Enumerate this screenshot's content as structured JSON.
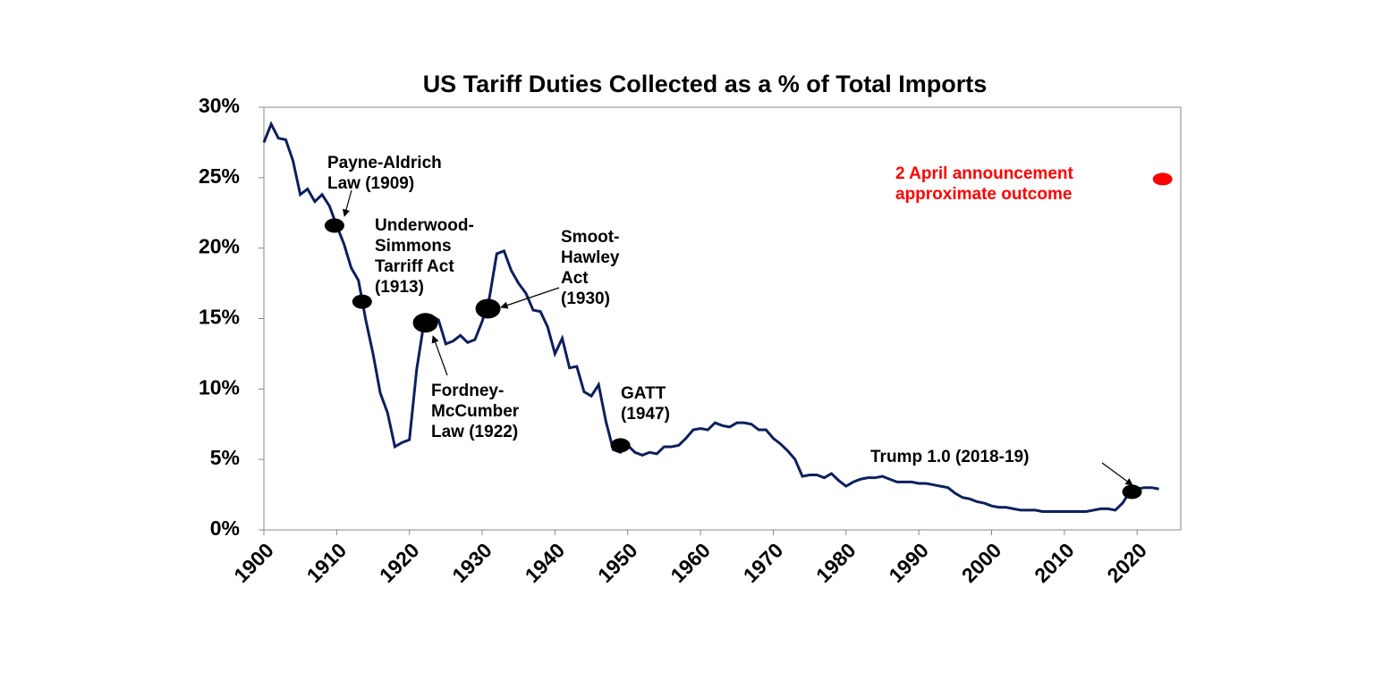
{
  "chart_data": {
    "type": "line",
    "title": "US Tariff Duties Collected as a % of Total Imports",
    "x": [
      1900,
      1901,
      1902,
      1903,
      1904,
      1905,
      1906,
      1907,
      1908,
      1909,
      1910,
      1911,
      1912,
      1913,
      1914,
      1915,
      1916,
      1917,
      1918,
      1919,
      1920,
      1921,
      1922,
      1923,
      1924,
      1925,
      1926,
      1927,
      1928,
      1929,
      1930,
      1931,
      1932,
      1933,
      1934,
      1935,
      1936,
      1937,
      1938,
      1939,
      1940,
      1941,
      1942,
      1943,
      1944,
      1945,
      1946,
      1947,
      1948,
      1949,
      1950,
      1951,
      1952,
      1953,
      1954,
      1955,
      1956,
      1957,
      1958,
      1959,
      1960,
      1961,
      1962,
      1963,
      1964,
      1965,
      1966,
      1967,
      1968,
      1969,
      1970,
      1971,
      1972,
      1973,
      1974,
      1975,
      1976,
      1977,
      1978,
      1979,
      1980,
      1981,
      1982,
      1983,
      1984,
      1985,
      1986,
      1987,
      1988,
      1989,
      1990,
      1991,
      1992,
      1993,
      1994,
      1995,
      1996,
      1997,
      1998,
      1999,
      2000,
      2001,
      2002,
      2003,
      2004,
      2005,
      2006,
      2007,
      2008,
      2009,
      2010,
      2011,
      2012,
      2013,
      2014,
      2015,
      2016,
      2017,
      2018,
      2019,
      2020,
      2021,
      2022,
      2023
    ],
    "values": [
      27.5,
      28.8,
      27.8,
      27.7,
      26.2,
      23.8,
      24.2,
      23.3,
      23.8,
      23.0,
      21.6,
      20.3,
      18.6,
      17.7,
      14.9,
      12.5,
      9.7,
      8.3,
      5.9,
      6.2,
      6.4,
      11.4,
      14.7,
      15.2,
      14.9,
      13.2,
      13.4,
      13.8,
      13.3,
      13.5,
      14.8,
      16.5,
      19.6,
      19.8,
      18.4,
      17.5,
      16.8,
      15.6,
      15.5,
      14.4,
      12.5,
      13.6,
      11.5,
      11.6,
      9.8,
      9.5,
      10.3,
      7.7,
      5.7,
      5.5,
      6.0,
      5.5,
      5.3,
      5.5,
      5.4,
      5.9,
      5.9,
      6.0,
      6.5,
      7.1,
      7.2,
      7.1,
      7.6,
      7.4,
      7.3,
      7.6,
      7.6,
      7.5,
      7.1,
      7.1,
      6.5,
      6.1,
      5.6,
      5.0,
      3.8,
      3.9,
      3.9,
      3.7,
      4.0,
      3.5,
      3.1,
      3.4,
      3.6,
      3.7,
      3.7,
      3.8,
      3.6,
      3.4,
      3.4,
      3.4,
      3.3,
      3.3,
      3.2,
      3.1,
      3.0,
      2.6,
      2.3,
      2.2,
      2.0,
      1.9,
      1.7,
      1.6,
      1.6,
      1.5,
      1.4,
      1.4,
      1.4,
      1.3,
      1.3,
      1.3,
      1.3,
      1.3,
      1.3,
      1.3,
      1.4,
      1.5,
      1.5,
      1.4,
      1.9,
      2.7,
      2.9,
      3.0,
      3.0,
      2.9
    ],
    "color": "#0d1f5c",
    "xlim": [
      1900,
      2026
    ],
    "xticks": [
      1900,
      1910,
      1920,
      1930,
      1940,
      1950,
      1960,
      1970,
      1980,
      1990,
      2000,
      2010,
      2020
    ],
    "ylim": [
      0,
      30
    ],
    "yticks": [
      {
        "value": 0,
        "label": "0%"
      },
      {
        "value": 5,
        "label": "5%"
      },
      {
        "value": 10,
        "label": "10%"
      },
      {
        "value": 15,
        "label": "15%"
      },
      {
        "value": 20,
        "label": "20%"
      },
      {
        "value": 25,
        "label": "25%"
      },
      {
        "value": 30,
        "label": "30%"
      }
    ],
    "annotations": [
      {
        "lines": [
          "Payne-Aldrich",
          "Law (1909)"
        ],
        "x": 1909.7,
        "y": 21.6
      },
      {
        "lines": [
          "Underwood-",
          "Simmons",
          "Tarriff Act",
          "(1913)"
        ],
        "x": 1913.5,
        "y": 16.2
      },
      {
        "lines": [
          "Fordney-",
          "McCumber",
          "Law (1922)"
        ],
        "x": 1922.2,
        "y": 14.7
      },
      {
        "lines": [
          "Smoot-",
          "Hawley",
          "Act",
          "(1930)"
        ],
        "x": 1930.8,
        "y": 15.7
      },
      {
        "lines": [
          "GATT",
          "(1947)"
        ],
        "x": 1949,
        "y": 6.0
      },
      {
        "lines": [
          "Trump 1.0 (2018-19)"
        ],
        "x": 2019.3,
        "y": 2.7
      }
    ],
    "outlook": {
      "lines": [
        "2 April announcement",
        "approximate outcome"
      ],
      "x": 2023.5,
      "y": 24.9,
      "color": "#ff0000"
    }
  }
}
